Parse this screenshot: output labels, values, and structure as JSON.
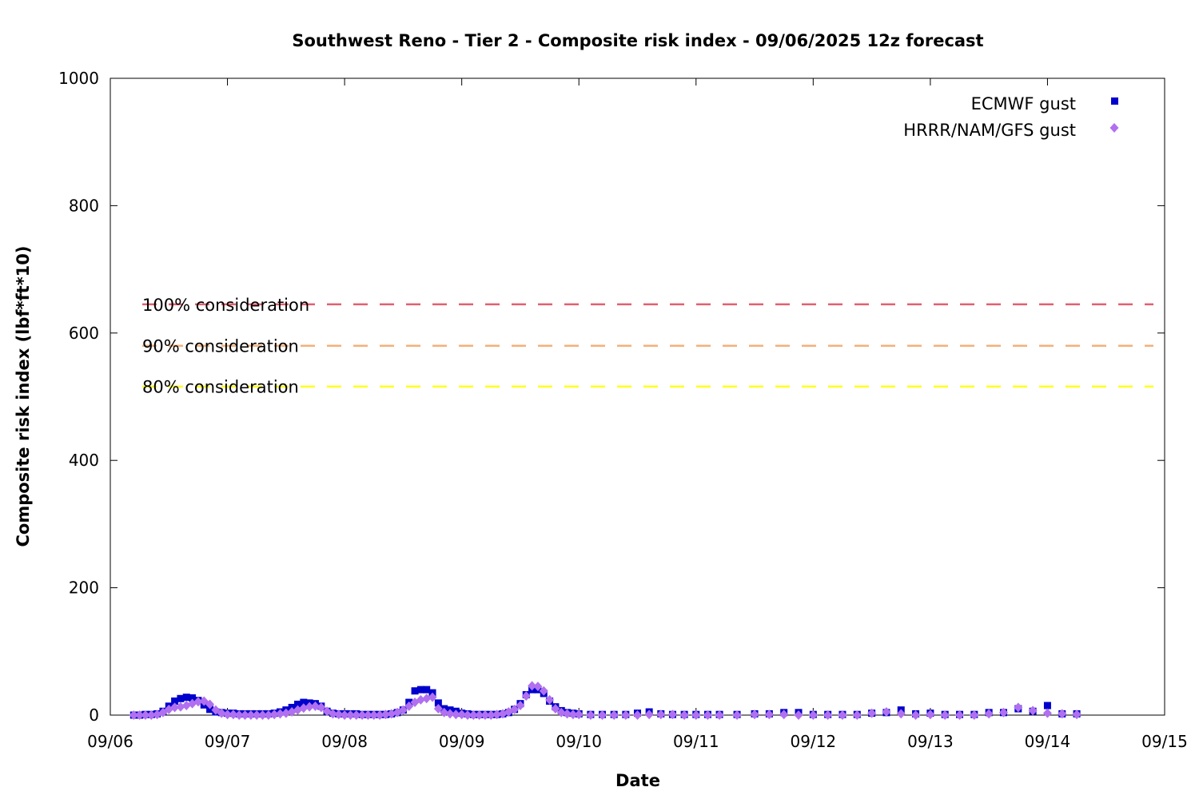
{
  "chart_data": {
    "type": "scatter",
    "title": "Southwest Reno - Tier 2 - Composite risk index - 09/06/2025 12z forecast",
    "xlabel": "Date",
    "ylabel": "Composite risk index (lbf*ft*10)",
    "xlim": [
      "09/06 00z",
      "09/15 00z"
    ],
    "ylim": [
      0,
      1000
    ],
    "x_ticks": [
      "09/06",
      "09/07",
      "09/08",
      "09/09",
      "09/10",
      "09/11",
      "09/12",
      "09/13",
      "09/14",
      "09/15"
    ],
    "y_ticks": [
      "0",
      "200",
      "400",
      "600",
      "800",
      "1000"
    ],
    "legend_position": "top-right",
    "grid": false,
    "thresholds": [
      {
        "label": "100% consideration",
        "value": 645,
        "color": "#e06070"
      },
      {
        "label": "90% consideration",
        "value": 580,
        "color": "#f4b07a"
      },
      {
        "label": "80% consideration",
        "value": 516,
        "color": "#ffff20"
      }
    ],
    "series": [
      {
        "name": "ECMWF gust",
        "marker": "square",
        "color": "#0000cc",
        "x_unit": "days since 09/06 00z",
        "points": [
          [
            0.2,
            0
          ],
          [
            0.25,
            0
          ],
          [
            0.3,
            1
          ],
          [
            0.35,
            1
          ],
          [
            0.4,
            2
          ],
          [
            0.45,
            6
          ],
          [
            0.5,
            14
          ],
          [
            0.55,
            22
          ],
          [
            0.6,
            26
          ],
          [
            0.65,
            28
          ],
          [
            0.7,
            27
          ],
          [
            0.75,
            23
          ],
          [
            0.8,
            16
          ],
          [
            0.85,
            9
          ],
          [
            0.9,
            5
          ],
          [
            0.95,
            4
          ],
          [
            1.0,
            3
          ],
          [
            1.05,
            3
          ],
          [
            1.1,
            2
          ],
          [
            1.15,
            2
          ],
          [
            1.2,
            2
          ],
          [
            1.25,
            2
          ],
          [
            1.3,
            2
          ],
          [
            1.35,
            2
          ],
          [
            1.4,
            3
          ],
          [
            1.45,
            5
          ],
          [
            1.5,
            8
          ],
          [
            1.55,
            12
          ],
          [
            1.6,
            17
          ],
          [
            1.65,
            20
          ],
          [
            1.7,
            19
          ],
          [
            1.75,
            18
          ],
          [
            1.8,
            14
          ],
          [
            1.85,
            6
          ],
          [
            1.9,
            3
          ],
          [
            1.95,
            2
          ],
          [
            2.0,
            2
          ],
          [
            2.05,
            2
          ],
          [
            2.1,
            2
          ],
          [
            2.15,
            1
          ],
          [
            2.2,
            1
          ],
          [
            2.25,
            1
          ],
          [
            2.3,
            1
          ],
          [
            2.35,
            1
          ],
          [
            2.4,
            2
          ],
          [
            2.45,
            4
          ],
          [
            2.5,
            8
          ],
          [
            2.55,
            20
          ],
          [
            2.6,
            38
          ],
          [
            2.65,
            40
          ],
          [
            2.7,
            40
          ],
          [
            2.75,
            35
          ],
          [
            2.8,
            19
          ],
          [
            2.85,
            10
          ],
          [
            2.9,
            8
          ],
          [
            2.95,
            6
          ],
          [
            3.0,
            3
          ],
          [
            3.05,
            2
          ],
          [
            3.1,
            1
          ],
          [
            3.15,
            1
          ],
          [
            3.2,
            1
          ],
          [
            3.25,
            1
          ],
          [
            3.3,
            1
          ],
          [
            3.35,
            2
          ],
          [
            3.4,
            4
          ],
          [
            3.45,
            9
          ],
          [
            3.5,
            18
          ],
          [
            3.55,
            32
          ],
          [
            3.6,
            40
          ],
          [
            3.65,
            40
          ],
          [
            3.7,
            34
          ],
          [
            3.75,
            22
          ],
          [
            3.8,
            13
          ],
          [
            3.85,
            7
          ],
          [
            3.9,
            4
          ],
          [
            3.95,
            3
          ],
          [
            4.0,
            2
          ],
          [
            4.1,
            1
          ],
          [
            4.2,
            1
          ],
          [
            4.3,
            1
          ],
          [
            4.4,
            1
          ],
          [
            4.5,
            3
          ],
          [
            4.6,
            5
          ],
          [
            4.7,
            2
          ],
          [
            4.8,
            1
          ],
          [
            4.9,
            1
          ],
          [
            5.0,
            1
          ],
          [
            5.1,
            1
          ],
          [
            5.2,
            1
          ],
          [
            5.35,
            1
          ],
          [
            5.5,
            2
          ],
          [
            5.625,
            2
          ],
          [
            5.75,
            4
          ],
          [
            5.875,
            4
          ],
          [
            6.0,
            1
          ],
          [
            6.125,
            1
          ],
          [
            6.25,
            1
          ],
          [
            6.375,
            1
          ],
          [
            6.5,
            3
          ],
          [
            6.625,
            4
          ],
          [
            6.75,
            8
          ],
          [
            6.875,
            2
          ],
          [
            7.0,
            3
          ],
          [
            7.125,
            1
          ],
          [
            7.25,
            1
          ],
          [
            7.375,
            1
          ],
          [
            7.5,
            4
          ],
          [
            7.625,
            4
          ],
          [
            7.75,
            10
          ],
          [
            7.875,
            6
          ],
          [
            8.0,
            15
          ],
          [
            8.125,
            2
          ],
          [
            8.25,
            2
          ]
        ]
      },
      {
        "name": "HRRR/NAM/GFS gust",
        "marker": "diamond",
        "color": "#b070f0",
        "x_unit": "days since 09/06 00z",
        "points": [
          [
            0.2,
            0
          ],
          [
            0.25,
            0
          ],
          [
            0.3,
            0
          ],
          [
            0.35,
            0
          ],
          [
            0.4,
            1
          ],
          [
            0.45,
            4
          ],
          [
            0.5,
            9
          ],
          [
            0.55,
            12
          ],
          [
            0.6,
            13
          ],
          [
            0.65,
            15
          ],
          [
            0.7,
            18
          ],
          [
            0.75,
            21
          ],
          [
            0.8,
            22
          ],
          [
            0.85,
            17
          ],
          [
            0.9,
            8
          ],
          [
            0.95,
            3
          ],
          [
            1.0,
            1
          ],
          [
            1.05,
            1
          ],
          [
            1.1,
            0
          ],
          [
            1.15,
            0
          ],
          [
            1.2,
            0
          ],
          [
            1.25,
            0
          ],
          [
            1.3,
            0
          ],
          [
            1.35,
            0
          ],
          [
            1.4,
            1
          ],
          [
            1.45,
            2
          ],
          [
            1.5,
            3
          ],
          [
            1.55,
            5
          ],
          [
            1.6,
            8
          ],
          [
            1.65,
            11
          ],
          [
            1.7,
            13
          ],
          [
            1.75,
            14
          ],
          [
            1.8,
            12
          ],
          [
            1.85,
            6
          ],
          [
            1.9,
            2
          ],
          [
            1.95,
            1
          ],
          [
            2.0,
            0
          ],
          [
            2.05,
            0
          ],
          [
            2.1,
            0
          ],
          [
            2.15,
            0
          ],
          [
            2.2,
            0
          ],
          [
            2.25,
            0
          ],
          [
            2.3,
            0
          ],
          [
            2.35,
            1
          ],
          [
            2.4,
            2
          ],
          [
            2.45,
            4
          ],
          [
            2.5,
            8
          ],
          [
            2.55,
            14
          ],
          [
            2.6,
            20
          ],
          [
            2.65,
            24
          ],
          [
            2.7,
            26
          ],
          [
            2.75,
            28
          ],
          [
            2.8,
            10
          ],
          [
            2.85,
            4
          ],
          [
            2.9,
            2
          ],
          [
            2.95,
            1
          ],
          [
            3.0,
            1
          ],
          [
            3.05,
            0
          ],
          [
            3.1,
            0
          ],
          [
            3.15,
            0
          ],
          [
            3.2,
            0
          ],
          [
            3.25,
            0
          ],
          [
            3.3,
            1
          ],
          [
            3.35,
            2
          ],
          [
            3.4,
            5
          ],
          [
            3.45,
            9
          ],
          [
            3.5,
            15
          ],
          [
            3.55,
            30
          ],
          [
            3.6,
            46
          ],
          [
            3.65,
            45
          ],
          [
            3.7,
            38
          ],
          [
            3.75,
            24
          ],
          [
            3.8,
            10
          ],
          [
            3.85,
            4
          ],
          [
            3.9,
            2
          ],
          [
            3.95,
            1
          ],
          [
            4.0,
            1
          ],
          [
            4.1,
            0
          ],
          [
            4.2,
            0
          ],
          [
            4.3,
            0
          ],
          [
            4.4,
            0
          ],
          [
            4.5,
            0
          ],
          [
            4.6,
            1
          ],
          [
            4.7,
            1
          ],
          [
            4.8,
            1
          ],
          [
            4.9,
            0
          ],
          [
            5.0,
            0
          ],
          [
            5.1,
            0
          ],
          [
            5.2,
            0
          ],
          [
            5.35,
            0
          ],
          [
            5.5,
            1
          ],
          [
            5.625,
            1
          ],
          [
            5.75,
            1
          ],
          [
            5.875,
            0
          ],
          [
            6.0,
            0
          ],
          [
            6.125,
            0
          ],
          [
            6.25,
            0
          ],
          [
            6.375,
            0
          ],
          [
            6.5,
            3
          ],
          [
            6.625,
            5
          ],
          [
            6.75,
            2
          ],
          [
            6.875,
            0
          ],
          [
            7.0,
            1
          ],
          [
            7.125,
            0
          ],
          [
            7.25,
            0
          ],
          [
            7.375,
            0
          ],
          [
            7.5,
            2
          ],
          [
            7.625,
            4
          ],
          [
            7.75,
            12
          ],
          [
            7.875,
            7
          ],
          [
            8.0,
            3
          ],
          [
            8.125,
            2
          ],
          [
            8.25,
            1
          ]
        ]
      }
    ]
  }
}
